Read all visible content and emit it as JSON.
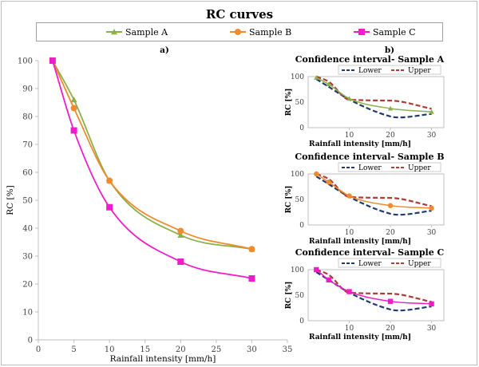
{
  "title": "RC curves",
  "legend": {
    "items": [
      {
        "name": "Sample A",
        "color": "#8ab04a",
        "marker": "triangle"
      },
      {
        "name": "Sample B",
        "color": "#f08a2e",
        "marker": "circle"
      },
      {
        "name": "Sample C",
        "color": "#f01cc8",
        "marker": "square"
      }
    ]
  },
  "chart_data": [
    {
      "id": "main",
      "panel_label": "a)",
      "type": "line",
      "xlabel": "Rainfall intensity [mm/h]",
      "ylabel": "RC [%]",
      "xlim": [
        0,
        35
      ],
      "ylim": [
        0,
        100
      ],
      "xticks": [
        0,
        5,
        10,
        15,
        20,
        25,
        30,
        35
      ],
      "yticks": [
        0,
        10,
        20,
        30,
        40,
        50,
        60,
        70,
        80,
        90,
        100
      ],
      "grid": false,
      "series": [
        {
          "name": "Sample A",
          "color": "#8ab04a",
          "marker": "triangle",
          "x": [
            2,
            5,
            10,
            20,
            30
          ],
          "y": [
            100,
            86,
            57,
            37.5,
            32.5
          ]
        },
        {
          "name": "Sample B",
          "color": "#f08a2e",
          "marker": "circle",
          "x": [
            2,
            5,
            10,
            20,
            30
          ],
          "y": [
            100,
            83,
            57,
            39,
            32.5
          ]
        },
        {
          "name": "Sample C",
          "color": "#f01cc8",
          "marker": "square",
          "x": [
            2,
            5,
            10,
            20,
            30
          ],
          "y": [
            100,
            75,
            47.5,
            28,
            22
          ]
        }
      ]
    },
    {
      "id": "ciA",
      "panel_label": "b)",
      "type": "line",
      "title": "Confidence interval- Sample A",
      "xlabel": "Rainfall intensity [mm/h]",
      "ylabel": "RC [%]",
      "xlim": [
        0,
        33
      ],
      "ylim": [
        0,
        100
      ],
      "xticks": [
        10,
        20,
        30
      ],
      "yticks": [
        0,
        50,
        100
      ],
      "legend": [
        "Lower",
        "Upper"
      ],
      "series": [
        {
          "name": "Sample A",
          "color": "#8ab04a",
          "marker": "triangle",
          "x": [
            2,
            5,
            10,
            20,
            30
          ],
          "y": [
            98,
            85,
            57,
            37.5,
            31
          ]
        },
        {
          "name": "Lower",
          "color": "#1f3a6e",
          "dash": true,
          "x": [
            2,
            5,
            10,
            20,
            22,
            30
          ],
          "y": [
            95,
            80,
            55,
            22,
            20,
            27
          ]
        },
        {
          "name": "Upper",
          "color": "#b03a34",
          "dash": true,
          "x": [
            2,
            5,
            10,
            20,
            30
          ],
          "y": [
            100,
            90,
            55,
            53,
            37
          ]
        }
      ]
    },
    {
      "id": "ciB",
      "type": "line",
      "title": "Confidence interval- Sample B",
      "xlabel": "Rainfall intensity [mm/h]",
      "ylabel": "RC [%]",
      "xlim": [
        0,
        33
      ],
      "ylim": [
        0,
        100
      ],
      "xticks": [
        10,
        20,
        30
      ],
      "yticks": [
        0,
        50,
        100
      ],
      "legend": [
        "Lower",
        "Upper"
      ],
      "series": [
        {
          "name": "Sample B",
          "color": "#f08a2e",
          "marker": "circle",
          "x": [
            2,
            5,
            10,
            20,
            30
          ],
          "y": [
            100,
            84,
            57,
            38,
            33
          ]
        },
        {
          "name": "Lower",
          "color": "#1f3a6e",
          "dash": true,
          "x": [
            2,
            5,
            10,
            20,
            22,
            30
          ],
          "y": [
            95,
            80,
            55,
            22,
            20,
            28
          ]
        },
        {
          "name": "Upper",
          "color": "#b03a34",
          "dash": true,
          "x": [
            2,
            5,
            10,
            20,
            30
          ],
          "y": [
            100,
            90,
            55,
            53,
            37
          ]
        }
      ]
    },
    {
      "id": "ciC",
      "type": "line",
      "title": "Confidence interval- Sample C",
      "xlabel": "Rainfall intensity [mm/h]",
      "ylabel": "RC [%]",
      "xlim": [
        0,
        33
      ],
      "ylim": [
        0,
        100
      ],
      "xticks": [
        10,
        20,
        30
      ],
      "yticks": [
        0,
        50,
        100
      ],
      "legend": [
        "Lower",
        "Upper"
      ],
      "series": [
        {
          "name": "Sample C",
          "color": "#f01cc8",
          "marker": "square",
          "x": [
            2,
            5,
            10,
            20,
            30
          ],
          "y": [
            100,
            80,
            57,
            38,
            33
          ]
        },
        {
          "name": "Lower",
          "color": "#1f3a6e",
          "dash": true,
          "x": [
            2,
            5,
            10,
            20,
            22,
            30
          ],
          "y": [
            95,
            80,
            55,
            22,
            20,
            28
          ]
        },
        {
          "name": "Upper",
          "color": "#b03a34",
          "dash": true,
          "x": [
            2,
            5,
            10,
            20,
            30
          ],
          "y": [
            100,
            90,
            55,
            53,
            37
          ]
        }
      ]
    }
  ]
}
